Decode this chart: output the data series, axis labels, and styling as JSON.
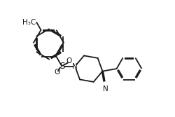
{
  "background_color": "#ffffff",
  "line_color": "#1a1a1a",
  "line_width": 1.3,
  "font_size": 7.5,
  "figsize": [
    2.51,
    1.67
  ],
  "dpi": 100,
  "xlim": [
    0,
    10
  ],
  "ylim": [
    0,
    6.65
  ]
}
